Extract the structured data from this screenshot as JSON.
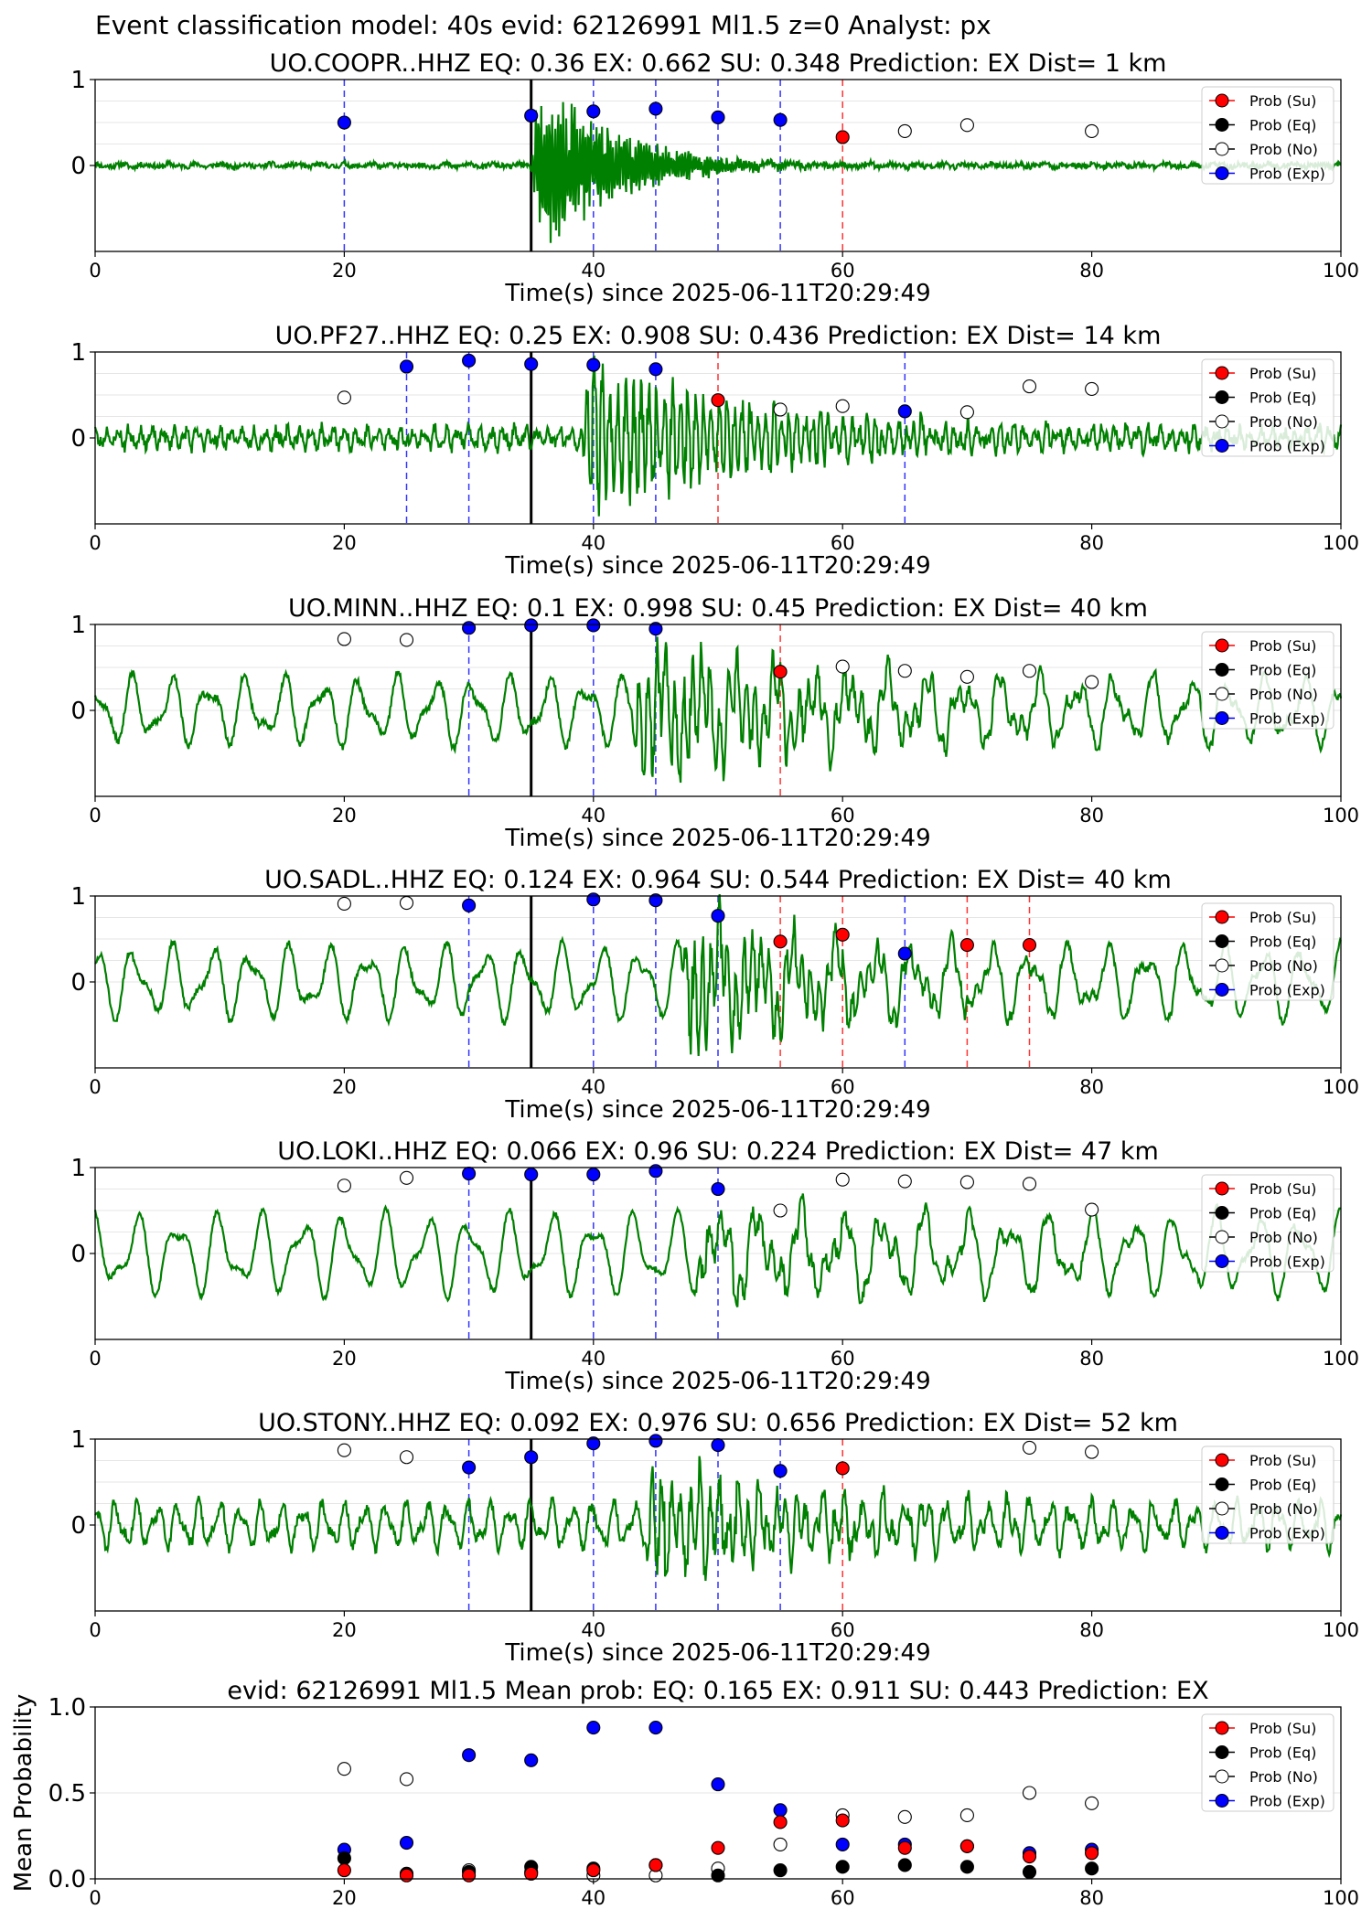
{
  "figure": {
    "suptitle": "Event classification model: 40s evid: 62126991 Ml1.5 z=0 Analyst: px"
  },
  "colors": {
    "trace": "#008000",
    "exp": "#0000ff",
    "su": "#ff0000",
    "eq": "#000000",
    "no": "#ffffff",
    "origin_line": "#000000"
  },
  "legend": [
    "Prob (Su)",
    "Prob (Eq)",
    "Prob (No)",
    "Prob (Exp)"
  ],
  "chart_data": [
    {
      "type": "line",
      "title": "UO.COOPR..HHZ   EQ: 0.36  EX: 0.662  SU: 0.348   Prediction: EX    Dist= 1 km",
      "xlabel": "Time(s) since 2025-06-11T20:29:49",
      "xlim": [
        0,
        100
      ],
      "ylim": [
        -1,
        1
      ],
      "xticks": [
        "0",
        "20",
        "40",
        "60",
        "80",
        "100"
      ],
      "yticks": [
        "0",
        "1"
      ],
      "origin_time": 35,
      "waveform": {
        "amp": 0.02,
        "noise": 0.06,
        "burst_start": 35,
        "burst_peak": 1.1,
        "burst_decay": 6,
        "burst_freq": 4.5,
        "bg_freq": 0.5,
        "seed": 11
      },
      "points": [
        {
          "t": 20,
          "p": 0.5,
          "cls": "exp"
        },
        {
          "t": 35,
          "p": 0.58,
          "cls": "exp"
        },
        {
          "t": 40,
          "p": 0.63,
          "cls": "exp"
        },
        {
          "t": 45,
          "p": 0.66,
          "cls": "exp"
        },
        {
          "t": 50,
          "p": 0.56,
          "cls": "exp"
        },
        {
          "t": 55,
          "p": 0.53,
          "cls": "exp"
        },
        {
          "t": 60,
          "p": 0.33,
          "cls": "su"
        },
        {
          "t": 65,
          "p": 0.4,
          "cls": "no"
        },
        {
          "t": 70,
          "p": 0.47,
          "cls": "no"
        },
        {
          "t": 80,
          "p": 0.4,
          "cls": "no"
        }
      ]
    },
    {
      "type": "line",
      "title": "UO.PF27..HHZ   EQ: 0.25  EX: 0.908  SU: 0.436   Prediction: EX    Dist= 14 km",
      "xlabel": "Time(s) since 2025-06-11T20:29:49",
      "xlim": [
        0,
        100
      ],
      "ylim": [
        -1,
        1
      ],
      "xticks": [
        "0",
        "20",
        "40",
        "60",
        "80",
        "100"
      ],
      "yticks": [
        "0",
        "1"
      ],
      "origin_time": 35,
      "waveform": {
        "amp": 0.12,
        "noise": 0.14,
        "burst_start": 39,
        "burst_peak": 0.95,
        "burst_decay": 14,
        "burst_freq": 1.6,
        "bg_freq": 1.1,
        "seed": 23
      },
      "points": [
        {
          "t": 20,
          "p": 0.47,
          "cls": "no"
        },
        {
          "t": 25,
          "p": 0.83,
          "cls": "exp"
        },
        {
          "t": 30,
          "p": 0.9,
          "cls": "exp"
        },
        {
          "t": 35,
          "p": 0.86,
          "cls": "exp"
        },
        {
          "t": 40,
          "p": 0.85,
          "cls": "exp"
        },
        {
          "t": 45,
          "p": 0.8,
          "cls": "exp"
        },
        {
          "t": 50,
          "p": 0.44,
          "cls": "su"
        },
        {
          "t": 55,
          "p": 0.33,
          "cls": "no"
        },
        {
          "t": 60,
          "p": 0.37,
          "cls": "no"
        },
        {
          "t": 65,
          "p": 0.31,
          "cls": "exp"
        },
        {
          "t": 70,
          "p": 0.3,
          "cls": "no"
        },
        {
          "t": 75,
          "p": 0.6,
          "cls": "no"
        },
        {
          "t": 80,
          "p": 0.57,
          "cls": "no"
        }
      ]
    },
    {
      "type": "line",
      "title": "UO.MINN..HHZ   EQ: 0.1  EX: 0.998  SU: 0.45   Prediction: EX    Dist= 40 km",
      "xlabel": "Time(s) since 2025-06-11T20:29:49",
      "xlim": [
        0,
        100
      ],
      "ylim": [
        -1,
        1
      ],
      "xticks": [
        "0",
        "20",
        "40",
        "60",
        "80",
        "100"
      ],
      "yticks": [
        "0",
        "1"
      ],
      "origin_time": 35,
      "waveform": {
        "amp": 0.42,
        "noise": 0.08,
        "burst_start": 43,
        "burst_peak": 0.75,
        "burst_decay": 16,
        "burst_freq": 1.4,
        "bg_freq": 0.33,
        "seed": 37
      },
      "points": [
        {
          "t": 20,
          "p": 0.83,
          "cls": "no"
        },
        {
          "t": 25,
          "p": 0.82,
          "cls": "no"
        },
        {
          "t": 30,
          "p": 0.96,
          "cls": "exp"
        },
        {
          "t": 35,
          "p": 0.99,
          "cls": "exp"
        },
        {
          "t": 40,
          "p": 0.99,
          "cls": "exp"
        },
        {
          "t": 45,
          "p": 0.95,
          "cls": "exp"
        },
        {
          "t": 55,
          "p": 0.45,
          "cls": "su"
        },
        {
          "t": 60,
          "p": 0.51,
          "cls": "no"
        },
        {
          "t": 65,
          "p": 0.46,
          "cls": "no"
        },
        {
          "t": 70,
          "p": 0.39,
          "cls": "no"
        },
        {
          "t": 75,
          "p": 0.46,
          "cls": "no"
        },
        {
          "t": 80,
          "p": 0.33,
          "cls": "no"
        }
      ]
    },
    {
      "type": "line",
      "title": "UO.SADL..HHZ   EQ: 0.124  EX: 0.964  SU: 0.544   Prediction: EX    Dist= 40 km",
      "xlabel": "Time(s) since 2025-06-11T20:29:49",
      "xlim": [
        0,
        100
      ],
      "ylim": [
        -1,
        1
      ],
      "xticks": [
        "0",
        "20",
        "40",
        "60",
        "80",
        "100"
      ],
      "yticks": [
        "0",
        "1"
      ],
      "origin_time": 35,
      "waveform": {
        "amp": 0.45,
        "noise": 0.07,
        "burst_start": 47,
        "burst_peak": 0.7,
        "burst_decay": 12,
        "burst_freq": 1.5,
        "bg_freq": 0.32,
        "seed": 51
      },
      "points": [
        {
          "t": 20,
          "p": 0.91,
          "cls": "no"
        },
        {
          "t": 25,
          "p": 0.92,
          "cls": "no"
        },
        {
          "t": 30,
          "p": 0.89,
          "cls": "exp"
        },
        {
          "t": 40,
          "p": 0.96,
          "cls": "exp"
        },
        {
          "t": 45,
          "p": 0.95,
          "cls": "exp"
        },
        {
          "t": 50,
          "p": 0.77,
          "cls": "exp"
        },
        {
          "t": 55,
          "p": 0.47,
          "cls": "su"
        },
        {
          "t": 60,
          "p": 0.55,
          "cls": "su"
        },
        {
          "t": 65,
          "p": 0.33,
          "cls": "exp"
        },
        {
          "t": 70,
          "p": 0.43,
          "cls": "su"
        },
        {
          "t": 75,
          "p": 0.43,
          "cls": "su"
        }
      ]
    },
    {
      "type": "line",
      "title": "UO.LOKI..HHZ   EQ: 0.066  EX: 0.96  SU: 0.224   Prediction: EX    Dist= 47 km",
      "xlabel": "Time(s) since 2025-06-11T20:29:49",
      "xlim": [
        0,
        100
      ],
      "ylim": [
        -1,
        1
      ],
      "xticks": [
        "0",
        "20",
        "40",
        "60",
        "80",
        "100"
      ],
      "yticks": [
        "0",
        "1"
      ],
      "origin_time": 35,
      "waveform": {
        "amp": 0.5,
        "noise": 0.05,
        "burst_start": 48,
        "burst_peak": 0.3,
        "burst_decay": 20,
        "burst_freq": 1.2,
        "bg_freq": 0.3,
        "seed": 67
      },
      "points": [
        {
          "t": 20,
          "p": 0.79,
          "cls": "no"
        },
        {
          "t": 25,
          "p": 0.88,
          "cls": "no"
        },
        {
          "t": 30,
          "p": 0.93,
          "cls": "exp"
        },
        {
          "t": 35,
          "p": 0.92,
          "cls": "exp"
        },
        {
          "t": 40,
          "p": 0.92,
          "cls": "exp"
        },
        {
          "t": 45,
          "p": 0.96,
          "cls": "exp"
        },
        {
          "t": 50,
          "p": 0.75,
          "cls": "exp"
        },
        {
          "t": 55,
          "p": 0.5,
          "cls": "no"
        },
        {
          "t": 60,
          "p": 0.86,
          "cls": "no"
        },
        {
          "t": 65,
          "p": 0.84,
          "cls": "no"
        },
        {
          "t": 70,
          "p": 0.83,
          "cls": "no"
        },
        {
          "t": 75,
          "p": 0.81,
          "cls": "no"
        },
        {
          "t": 80,
          "p": 0.51,
          "cls": "no"
        }
      ]
    },
    {
      "type": "line",
      "title": "UO.STONY..HHZ   EQ: 0.092  EX: 0.976  SU: 0.656   Prediction: EX    Dist= 52 km",
      "xlabel": "Time(s) since 2025-06-11T20:29:49",
      "xlim": [
        0,
        100
      ],
      "ylim": [
        -1,
        1
      ],
      "xticks": [
        "0",
        "20",
        "40",
        "60",
        "80",
        "100"
      ],
      "yticks": [
        "0",
        "1"
      ],
      "origin_time": 35,
      "waveform": {
        "amp": 0.28,
        "noise": 0.12,
        "burst_start": 44,
        "burst_peak": 0.6,
        "burst_decay": 16,
        "burst_freq": 1.3,
        "bg_freq": 0.6,
        "seed": 83
      },
      "points": [
        {
          "t": 20,
          "p": 0.87,
          "cls": "no"
        },
        {
          "t": 25,
          "p": 0.79,
          "cls": "no"
        },
        {
          "t": 30,
          "p": 0.67,
          "cls": "exp"
        },
        {
          "t": 35,
          "p": 0.79,
          "cls": "exp"
        },
        {
          "t": 40,
          "p": 0.95,
          "cls": "exp"
        },
        {
          "t": 45,
          "p": 0.98,
          "cls": "exp"
        },
        {
          "t": 50,
          "p": 0.93,
          "cls": "exp"
        },
        {
          "t": 55,
          "p": 0.63,
          "cls": "exp"
        },
        {
          "t": 60,
          "p": 0.66,
          "cls": "su"
        },
        {
          "t": 75,
          "p": 0.9,
          "cls": "no"
        },
        {
          "t": 80,
          "p": 0.85,
          "cls": "no"
        }
      ]
    },
    {
      "type": "scatter",
      "title": "evid: 62126991  Ml1.5   Mean prob:   EQ: 0.165  EX: 0.911  SU: 0.443   Prediction: EX",
      "ylabel": "Mean Probability",
      "xlim": [
        0,
        100
      ],
      "ylim": [
        0,
        1
      ],
      "xticks": [
        "0",
        "20",
        "40",
        "60",
        "80",
        "100"
      ],
      "yticks": [
        "0.0",
        "0.5",
        "1.0"
      ],
      "x": [
        20,
        25,
        30,
        35,
        40,
        45,
        50,
        55,
        60,
        65,
        70,
        75,
        80
      ],
      "series": [
        {
          "name": "Prob (Su)",
          "cls": "su",
          "values": [
            0.05,
            0.02,
            0.02,
            0.03,
            0.05,
            0.08,
            0.18,
            0.33,
            0.34,
            0.18,
            0.19,
            0.13,
            0.15
          ]
        },
        {
          "name": "Prob (Eq)",
          "cls": "eq",
          "values": [
            0.12,
            0.03,
            0.04,
            0.07,
            0.06,
            0.08,
            0.02,
            0.05,
            0.07,
            0.08,
            0.07,
            0.04,
            0.06
          ]
        },
        {
          "name": "Prob (No)",
          "cls": "no",
          "values": [
            0.64,
            0.58,
            0.05,
            0.04,
            0.02,
            0.02,
            0.06,
            0.2,
            0.37,
            0.36,
            0.37,
            0.5,
            0.44
          ]
        },
        {
          "name": "Prob (Exp)",
          "cls": "exp",
          "values": [
            0.17,
            0.21,
            0.72,
            0.69,
            0.88,
            0.88,
            0.55,
            0.4,
            0.2,
            0.2,
            0.19,
            0.15,
            0.17
          ]
        }
      ]
    }
  ]
}
